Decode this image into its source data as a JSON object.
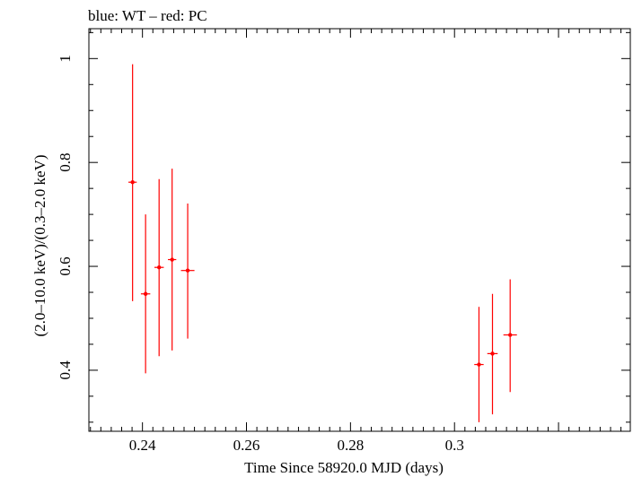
{
  "chart_data": {
    "type": "scatter",
    "title": "blue: WT – red: PC",
    "xlabel": "Time Since 58920.0 MJD (days)",
    "ylabel": "(2.0–10.0 keV)/(0.3–2.0 keV)",
    "xlim": [
      0.2297,
      0.3338
    ],
    "ylim": [
      0.2825,
      1.0575
    ],
    "x_ticks": [
      0.24,
      0.26,
      0.28,
      0.3
    ],
    "x_tick_labels": [
      "0.24",
      "0.26",
      "0.28",
      "0.3"
    ],
    "y_ticks": [
      0.4,
      0.6,
      0.8,
      1.0
    ],
    "y_tick_labels": [
      "0.4",
      "0.6",
      "0.8",
      "1"
    ],
    "grid": false,
    "series": [
      {
        "name": "PC",
        "color": "#ff0000",
        "points": [
          {
            "x": 0.2381,
            "y": 0.762,
            "xerr": 0.0008,
            "ylo": 0.533,
            "yhi": 0.989
          },
          {
            "x": 0.2406,
            "y": 0.547,
            "xerr": 0.0009,
            "ylo": 0.394,
            "yhi": 0.7
          },
          {
            "x": 0.2432,
            "y": 0.598,
            "xerr": 0.0009,
            "ylo": 0.427,
            "yhi": 0.768
          },
          {
            "x": 0.2457,
            "y": 0.613,
            "xerr": 0.0008,
            "ylo": 0.438,
            "yhi": 0.788
          },
          {
            "x": 0.2487,
            "y": 0.592,
            "xerr": 0.0013,
            "ylo": 0.461,
            "yhi": 0.721
          },
          {
            "x": 0.3047,
            "y": 0.411,
            "xerr": 0.0009,
            "ylo": 0.3,
            "yhi": 0.522
          },
          {
            "x": 0.3073,
            "y": 0.432,
            "xerr": 0.001,
            "ylo": 0.315,
            "yhi": 0.547
          },
          {
            "x": 0.3107,
            "y": 0.468,
            "xerr": 0.0013,
            "ylo": 0.358,
            "yhi": 0.575
          }
        ]
      }
    ]
  }
}
